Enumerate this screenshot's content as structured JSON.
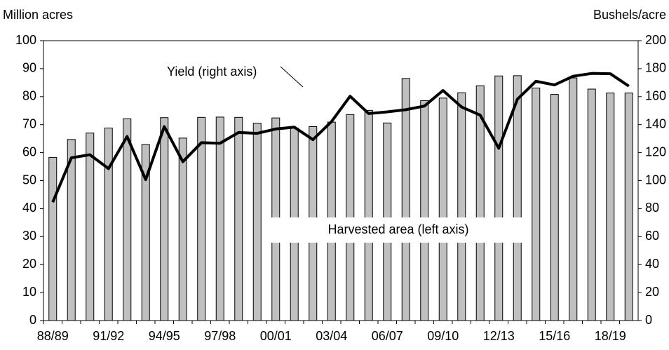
{
  "chart_data": {
    "type": "bar-line",
    "left_axis_label": "Million acres",
    "right_axis_label": "Bushels/acre",
    "annotations": [
      "Yield (right axis)",
      "Harvested area (left axis)"
    ],
    "categories": [
      "88/89",
      null,
      null,
      "91/92",
      null,
      null,
      "94/95",
      null,
      null,
      "97/98",
      null,
      null,
      "00/01",
      null,
      null,
      "03/04",
      null,
      null,
      "06/07",
      null,
      null,
      "09/10",
      null,
      null,
      "12/13",
      null,
      null,
      "15/16",
      null,
      null,
      "18/19",
      null
    ],
    "series": [
      {
        "name": "Harvested area (left axis)",
        "type": "bar",
        "color": "#c0c0c0",
        "values": [
          58.3,
          64.7,
          67.0,
          68.8,
          72.1,
          62.9,
          72.5,
          65.2,
          72.6,
          72.7,
          72.6,
          70.5,
          72.4,
          68.8,
          69.3,
          70.9,
          73.6,
          75.1,
          70.6,
          86.5,
          78.6,
          79.5,
          81.4,
          83.9,
          87.4,
          87.5,
          83.1,
          80.8,
          86.7,
          82.7,
          81.3,
          81.3
        ]
      },
      {
        "name": "Yield (right axis)",
        "type": "line",
        "axis": "y2",
        "color": "#000000",
        "values": [
          84.6,
          116.3,
          118.5,
          108.6,
          131.5,
          100.7,
          138.6,
          113.5,
          127.1,
          126.7,
          134.4,
          133.8,
          136.9,
          138.2,
          129.3,
          142.2,
          160.3,
          147.9,
          149.1,
          150.7,
          153.3,
          164.4,
          152.6,
          146.8,
          123.1,
          158.1,
          171.0,
          168.4,
          174.6,
          176.6,
          176.4,
          167.5
        ]
      }
    ],
    "ylim": [
      0,
      100
    ],
    "yticks": [
      0,
      10,
      20,
      30,
      40,
      50,
      60,
      70,
      80,
      90,
      100
    ],
    "y2lim": [
      0,
      200
    ],
    "y2ticks": [
      0,
      20,
      40,
      60,
      80,
      100,
      120,
      140,
      160,
      180,
      200
    ],
    "grid": false
  }
}
